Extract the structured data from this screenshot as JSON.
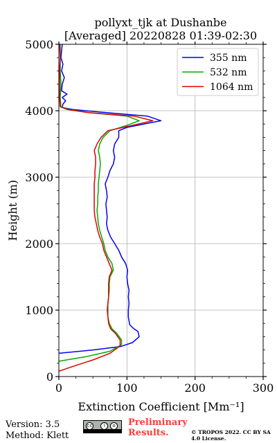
{
  "chart_data": {
    "type": "line",
    "title": "pollyxt_tjk at Dushanbe",
    "subtitle": "[Averaged] 20220828 01:39-02:30",
    "xlabel": "Extinction Coefficient [Mm⁻¹]",
    "ylabel": "Height (m)",
    "xlim": [
      0,
      300
    ],
    "ylim": [
      0,
      5000
    ],
    "x_ticks": [
      0,
      100,
      200,
      300
    ],
    "y_ticks": [
      0,
      1000,
      2000,
      3000,
      4000,
      5000
    ],
    "grid": true,
    "legend_position": "top-right",
    "series": [
      {
        "name": "355 nm",
        "color": "#0000ee",
        "points": [
          [
            0,
            350
          ],
          [
            50,
            400
          ],
          [
            90,
            450
          ],
          [
            108,
            510
          ],
          [
            118,
            600
          ],
          [
            116,
            680
          ],
          [
            110,
            720
          ],
          [
            104,
            780
          ],
          [
            102,
            900
          ],
          [
            102,
            1000
          ],
          [
            103,
            1100
          ],
          [
            102,
            1200
          ],
          [
            103,
            1300
          ],
          [
            101,
            1400
          ],
          [
            100,
            1500
          ],
          [
            101,
            1600
          ],
          [
            98,
            1700
          ],
          [
            92,
            1800
          ],
          [
            88,
            1900
          ],
          [
            82,
            2000
          ],
          [
            76,
            2100
          ],
          [
            72,
            2200
          ],
          [
            70,
            2300
          ],
          [
            71,
            2400
          ],
          [
            70,
            2500
          ],
          [
            69,
            2600
          ],
          [
            71,
            2700
          ],
          [
            70,
            2800
          ],
          [
            68,
            2900
          ],
          [
            72,
            3000
          ],
          [
            75,
            3100
          ],
          [
            80,
            3200
          ],
          [
            82,
            3300
          ],
          [
            80,
            3400
          ],
          [
            82,
            3500
          ],
          [
            88,
            3600
          ],
          [
            88,
            3700
          ],
          [
            100,
            3750
          ],
          [
            150,
            3850
          ],
          [
            130,
            3920
          ],
          [
            60,
            3980
          ],
          [
            20,
            4020
          ],
          [
            5,
            4050
          ],
          [
            6,
            4100
          ],
          [
            10,
            4150
          ],
          [
            5,
            4200
          ],
          [
            12,
            4250
          ],
          [
            4,
            4300
          ],
          [
            5,
            4400
          ],
          [
            8,
            4500
          ],
          [
            4,
            4600
          ],
          [
            6,
            4700
          ],
          [
            3,
            4800
          ],
          [
            4,
            4900
          ],
          [
            5,
            5000
          ]
        ]
      },
      {
        "name": "532 nm",
        "color": "#00aa00",
        "points": [
          [
            0,
            230
          ],
          [
            40,
            300
          ],
          [
            75,
            380
          ],
          [
            92,
            480
          ],
          [
            92,
            550
          ],
          [
            85,
            650
          ],
          [
            78,
            720
          ],
          [
            74,
            800
          ],
          [
            72,
            900
          ],
          [
            72,
            1000
          ],
          [
            72,
            1100
          ],
          [
            73,
            1200
          ],
          [
            74,
            1300
          ],
          [
            74,
            1400
          ],
          [
            75,
            1500
          ],
          [
            80,
            1600
          ],
          [
            78,
            1700
          ],
          [
            72,
            1800
          ],
          [
            68,
            1900
          ],
          [
            66,
            2000
          ],
          [
            63,
            2100
          ],
          [
            60,
            2200
          ],
          [
            58,
            2300
          ],
          [
            57,
            2400
          ],
          [
            56,
            2500
          ],
          [
            57,
            2600
          ],
          [
            57,
            2700
          ],
          [
            58,
            2800
          ],
          [
            58,
            2900
          ],
          [
            59,
            3000
          ],
          [
            60,
            3100
          ],
          [
            61,
            3200
          ],
          [
            60,
            3300
          ],
          [
            58,
            3400
          ],
          [
            60,
            3500
          ],
          [
            65,
            3600
          ],
          [
            75,
            3700
          ],
          [
            100,
            3780
          ],
          [
            118,
            3850
          ],
          [
            100,
            3920
          ],
          [
            45,
            3970
          ],
          [
            15,
            4020
          ],
          [
            3,
            4060
          ],
          [
            2,
            4200
          ],
          [
            3,
            4400
          ],
          [
            2,
            4600
          ],
          [
            2,
            4800
          ],
          [
            2,
            5000
          ]
        ]
      },
      {
        "name": "1064 nm",
        "color": "#dd0000",
        "points": [
          [
            0,
            80
          ],
          [
            20,
            150
          ],
          [
            50,
            250
          ],
          [
            75,
            350
          ],
          [
            90,
            460
          ],
          [
            90,
            550
          ],
          [
            83,
            650
          ],
          [
            76,
            720
          ],
          [
            73,
            800
          ],
          [
            72,
            900
          ],
          [
            71,
            1000
          ],
          [
            72,
            1100
          ],
          [
            73,
            1200
          ],
          [
            73,
            1300
          ],
          [
            73,
            1400
          ],
          [
            74,
            1500
          ],
          [
            78,
            1600
          ],
          [
            74,
            1700
          ],
          [
            70,
            1800
          ],
          [
            66,
            1900
          ],
          [
            64,
            2000
          ],
          [
            60,
            2100
          ],
          [
            57,
            2200
          ],
          [
            55,
            2300
          ],
          [
            53,
            2400
          ],
          [
            52,
            2500
          ],
          [
            52,
            2600
          ],
          [
            52,
            2700
          ],
          [
            52,
            2800
          ],
          [
            52,
            2900
          ],
          [
            53,
            3000
          ],
          [
            53,
            3100
          ],
          [
            54,
            3200
          ],
          [
            54,
            3300
          ],
          [
            52,
            3400
          ],
          [
            56,
            3500
          ],
          [
            62,
            3600
          ],
          [
            72,
            3700
          ],
          [
            108,
            3780
          ],
          [
            138,
            3850
          ],
          [
            110,
            3920
          ],
          [
            45,
            3970
          ],
          [
            12,
            4020
          ],
          [
            2,
            4060
          ],
          [
            1,
            4200
          ],
          [
            1,
            4400
          ],
          [
            1,
            4600
          ],
          [
            2,
            4800
          ],
          [
            1,
            5000
          ]
        ]
      }
    ]
  },
  "footer": {
    "version": "Version: 3.5",
    "method": "Method: Klett",
    "preliminary": "Preliminary Results.",
    "copyright": "© TROPOS 2022. CC BY SA 4.0 License."
  }
}
